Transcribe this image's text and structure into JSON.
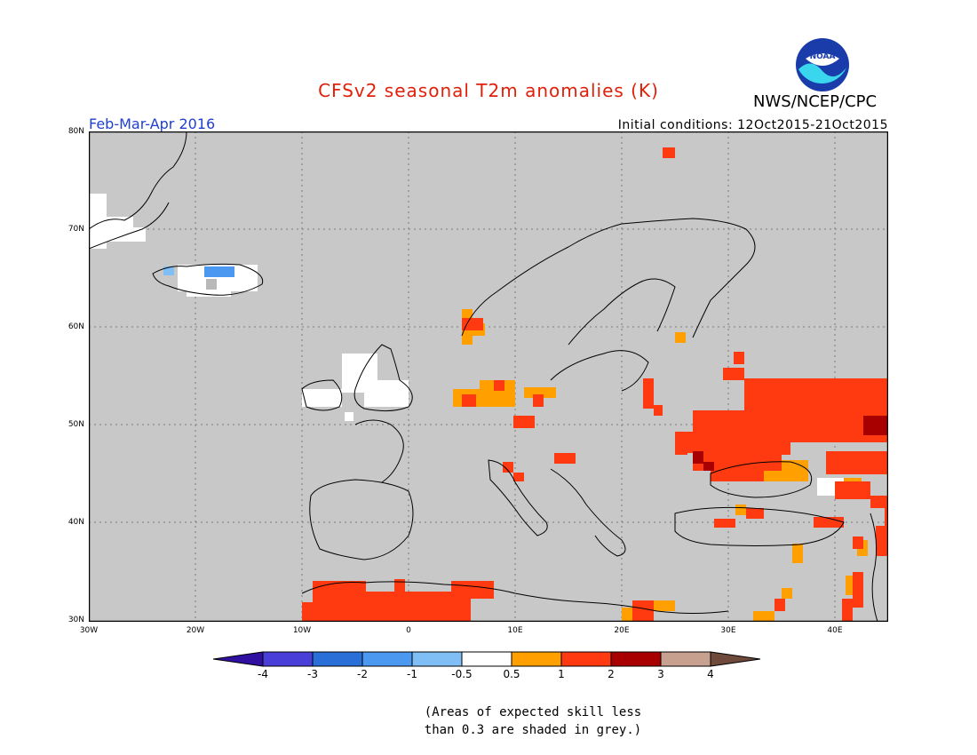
{
  "title": "CFSv2 seasonal T2m anomalies (K)",
  "agency": "NWS/NCEP/CPC",
  "logo_text": "NOAA",
  "period": "Feb-Mar-Apr 2016",
  "initial_conditions": "Initial conditions: 12Oct2015-21Oct2015",
  "lat_labels": [
    "80N",
    "70N",
    "60N",
    "50N",
    "40N",
    "30N"
  ],
  "lon_labels": [
    "30W",
    "20W",
    "10W",
    "0",
    "10E",
    "20E",
    "30E",
    "40E"
  ],
  "colorbar": {
    "labels": [
      "-4",
      "-3",
      "-2",
      "-1",
      "-0.5",
      "0.5",
      "1",
      "2",
      "3",
      "4"
    ],
    "colors": [
      "#3010a0",
      "#4a3ed8",
      "#2a6fd8",
      "#4a98f0",
      "#80bff5",
      "#ffffff",
      "#ffa000",
      "#ff3a10",
      "#a80000",
      "#c8a090",
      "#6f4a3a"
    ]
  },
  "map_colors": {
    "grey": "#c8c8c8",
    "white": "#ffffff",
    "light_orange": "#ffa000",
    "orange_red": "#ff3a10",
    "dark_red": "#a80000",
    "light_blue": "#80bff5",
    "blue": "#4a98f0"
  },
  "note": [
    "(Areas of expected skill less",
    "than 0.3 are shaded in grey.)"
  ]
}
